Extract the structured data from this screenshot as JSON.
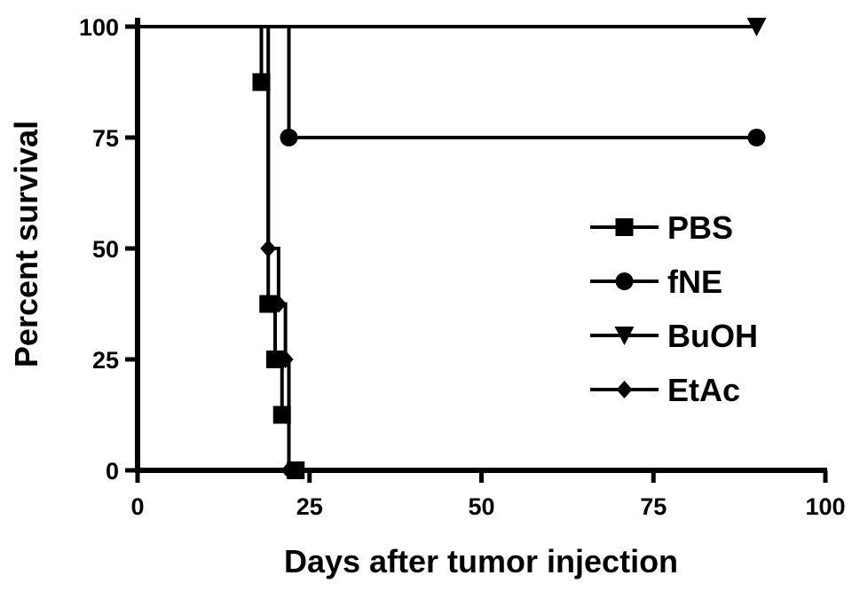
{
  "chart_data": {
    "type": "line",
    "step": true,
    "xlabel": "Days after tumor injection",
    "ylabel": "Percent survival",
    "xlim": [
      0,
      100
    ],
    "ylim": [
      0,
      100
    ],
    "xticks": [
      "0",
      "25",
      "50",
      "75",
      "100"
    ],
    "yticks": [
      "0",
      "25",
      "50",
      "75",
      "100"
    ],
    "grid": false,
    "legend_position": "right",
    "series": [
      {
        "name": "PBS",
        "marker": "square",
        "points": [
          [
            0,
            100
          ],
          [
            18,
            87.5
          ],
          [
            19,
            37.5
          ],
          [
            20,
            25
          ],
          [
            21,
            12.5
          ],
          [
            22,
            0
          ],
          [
            23,
            0
          ]
        ]
      },
      {
        "name": "fNE",
        "marker": "circle",
        "points": [
          [
            0,
            100
          ],
          [
            22,
            75
          ],
          [
            90,
            75
          ]
        ]
      },
      {
        "name": "BuOH",
        "marker": "triangle-down",
        "points": [
          [
            0,
            100
          ],
          [
            90,
            100
          ]
        ]
      },
      {
        "name": "EtAc",
        "marker": "diamond",
        "points": [
          [
            0,
            100
          ],
          [
            19,
            50
          ],
          [
            20.5,
            37.5
          ],
          [
            21.5,
            25
          ],
          [
            22,
            0
          ]
        ]
      }
    ]
  }
}
